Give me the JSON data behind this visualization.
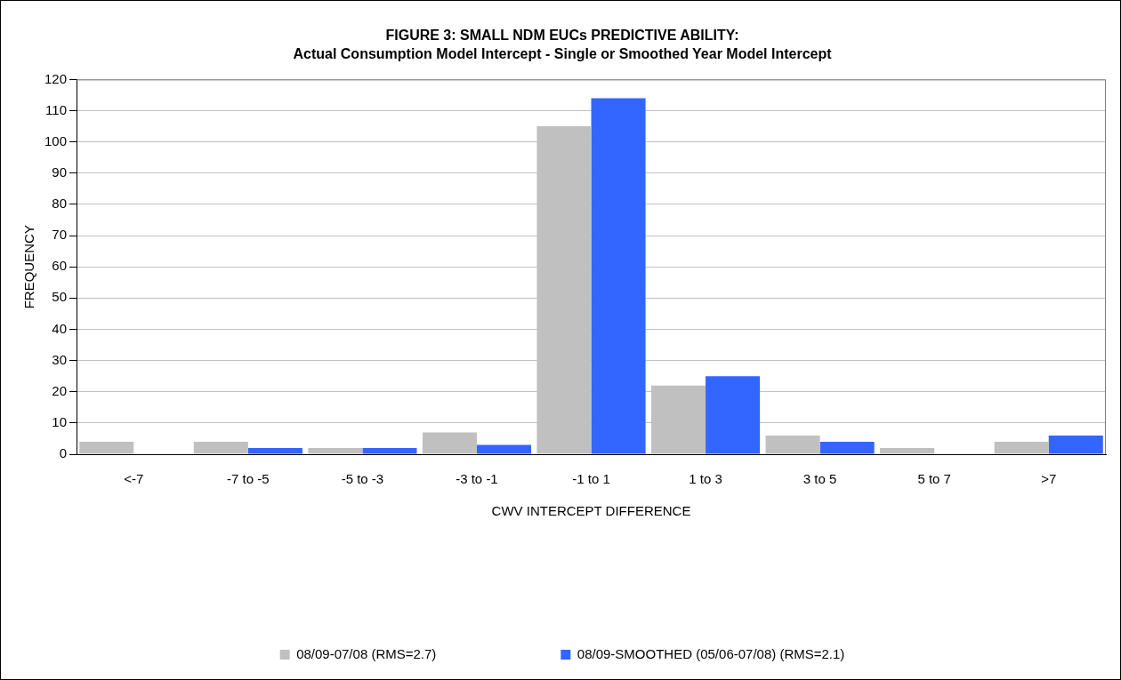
{
  "chart_data": {
    "type": "bar",
    "title": "FIGURE 3: SMALL NDM EUCs PREDICTIVE ABILITY:",
    "subtitle": "Actual Consumption Model Intercept - Single or Smoothed Year Model Intercept",
    "xlabel": "CWV INTERCEPT DIFFERENCE",
    "ylabel": "FREQUENCY",
    "categories": [
      "<-7",
      "-7 to -5",
      "-5 to -3",
      "-3 to -1",
      "-1 to 1",
      "1 to 3",
      "3 to 5",
      "5 to 7",
      ">7"
    ],
    "series": [
      {
        "name": "08/09-07/08 (RMS=2.7)",
        "color": "#c0c0c0",
        "values": [
          4,
          4,
          2,
          7,
          105,
          22,
          6,
          2,
          4
        ]
      },
      {
        "name": "08/09-SMOOTHED (05/06-07/08) (RMS=2.1)",
        "color": "#3366ff",
        "values": [
          0,
          2,
          2,
          3,
          114,
          25,
          4,
          0,
          6
        ]
      }
    ],
    "ylim": [
      0,
      120
    ],
    "yticks": [
      0,
      10,
      20,
      30,
      40,
      50,
      60,
      70,
      80,
      90,
      100,
      110,
      120
    ],
    "grid": "y",
    "legend": "bottom"
  }
}
